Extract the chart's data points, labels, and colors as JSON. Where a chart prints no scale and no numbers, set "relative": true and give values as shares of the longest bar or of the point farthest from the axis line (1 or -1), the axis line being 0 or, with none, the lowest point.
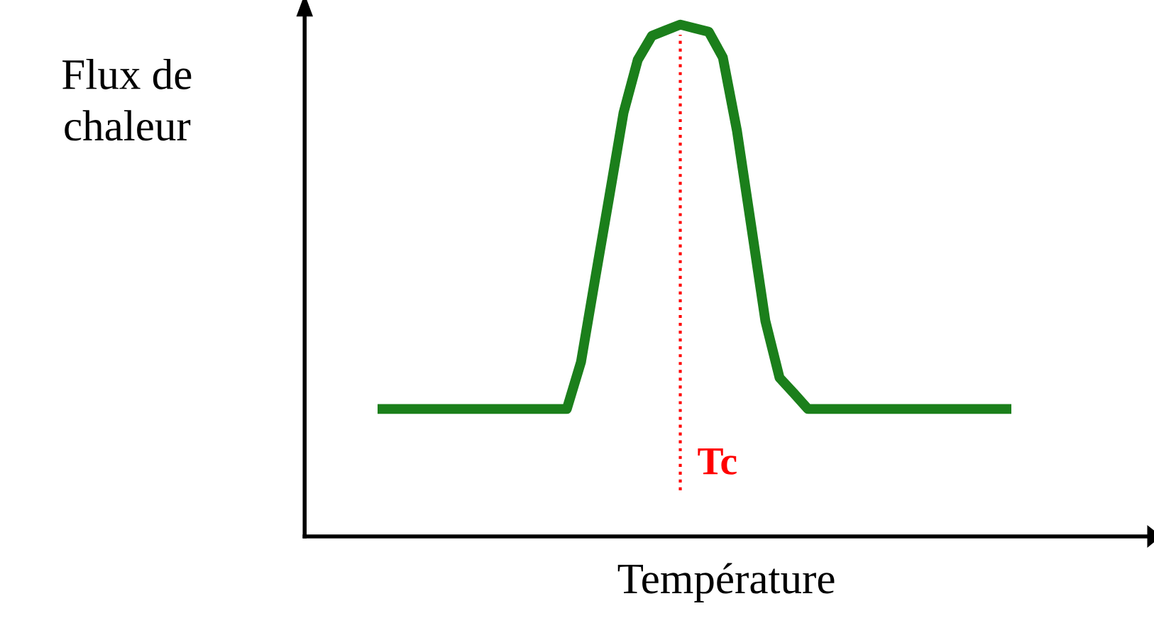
{
  "chart_data": {
    "type": "line",
    "relative": true,
    "xlabel": "Température",
    "ylabel": "Flux de\nchaleur",
    "categories": [
      null,
      null,
      null,
      null,
      null,
      null,
      null,
      null,
      null,
      null,
      null,
      null,
      null,
      null,
      null,
      null,
      null,
      null,
      null,
      null,
      null,
      null,
      null,
      null,
      null,
      null,
      null,
      null,
      null,
      null,
      null,
      null,
      null,
      null,
      null,
      null,
      null,
      null,
      null,
      null,
      null,
      null,
      null,
      null,
      null
    ],
    "series": [
      {
        "color": "#1b7f1b",
        "values": [
          0.249,
          0.249,
          0.249,
          0.249,
          0.249,
          0.249,
          0.249,
          0.249,
          0.249,
          0.249,
          0.249,
          0.249,
          0.249,
          0.249,
          0.341,
          0.504,
          0.665,
          0.828,
          0.931,
          0.978,
          0.989,
          1.0,
          0.993,
          0.986,
          0.936,
          0.792,
          0.607,
          0.421,
          0.31,
          0.28,
          0.249,
          0.249,
          0.249,
          0.249,
          0.249,
          0.249,
          0.249,
          0.249,
          0.249,
          0.249,
          0.249,
          0.249,
          0.249,
          0.249,
          0.249
        ]
      }
    ],
    "annotations": [
      "Tc"
    ],
    "legend": false,
    "marker": "none",
    "line_style": "solid"
  }
}
